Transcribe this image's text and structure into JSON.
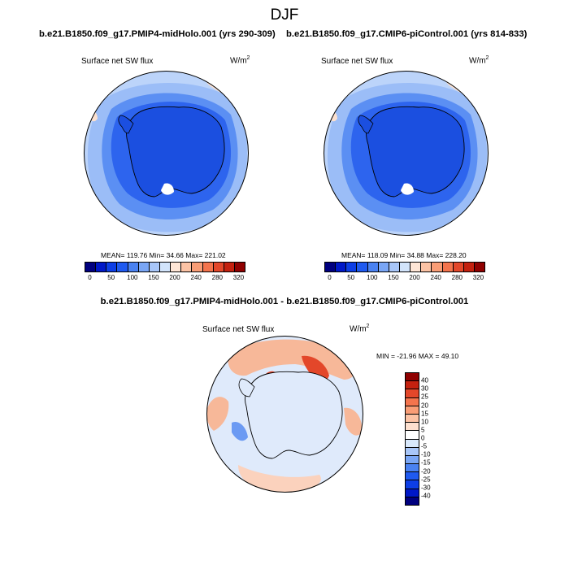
{
  "figure": {
    "title": "DJF",
    "panel_left": {
      "title": "b.e21.B1850.f09_g17.PMIP4-midHolo.001 (yrs 290-309)",
      "variable": "Surface net SW flux",
      "units_base": "W/m",
      "units_exp": "2",
      "stats": "MEAN= 119.76  Min=  34.66  Max= 221.02"
    },
    "panel_right": {
      "title": "b.e21.B1850.f09_g17.CMIP6-piControl.001 (yrs 814-833)",
      "variable": "Surface net SW flux",
      "units_base": "W/m",
      "units_exp": "2",
      "stats": "MEAN= 118.09  Min=  34.88  Max= 228.20"
    },
    "panel_diff": {
      "title": "b.e21.B1850.f09_g17.PMIP4-midHolo.001 - b.e21.B1850.f09_g17.CMIP6-piControl.001",
      "variable": "Surface net SW flux",
      "units_base": "W/m",
      "units_exp": "2",
      "stats": "MIN = -21.96 MAX =  49.10"
    }
  },
  "abs_colorbar": {
    "ticks": [
      "0",
      "50",
      "100",
      "150",
      "200",
      "240",
      "280",
      "320"
    ],
    "colors": [
      "#00007f",
      "#0018c8",
      "#0d3ee6",
      "#1f5af0",
      "#4a82f2",
      "#7aa6f5",
      "#a8c6f8",
      "#d2e4fb",
      "#ffe6d6",
      "#fcc3a5",
      "#f99d76",
      "#f4744d",
      "#e3472a",
      "#c4210f",
      "#8f0000"
    ]
  },
  "diff_colorbar": {
    "ticks": [
      "40",
      "30",
      "25",
      "20",
      "15",
      "10",
      "5",
      "0",
      "-5",
      "-10",
      "-15",
      "-20",
      "-25",
      "-30",
      "-40"
    ],
    "colors": [
      "#8f0000",
      "#c4210f",
      "#e3472a",
      "#f4744d",
      "#f99d76",
      "#fcc3a5",
      "#fde0cf",
      "#ffffff",
      "#d8e8fb",
      "#a8c6f8",
      "#7aa6f5",
      "#4a82f2",
      "#1f5af0",
      "#0d3ee6",
      "#0018c8",
      "#00007f"
    ]
  },
  "map_colors": {
    "land": "#1b4fe0",
    "ocean_inner": "#2d64ee",
    "ocean_mid": "#5b8ff3",
    "ocean_outer": "#9bbdf7",
    "ocean_edge": "#bcd4fa",
    "warm_patch": "#fbe0cf",
    "diff_bg": "#dfeafb",
    "diff_warm": "#f7b899",
    "diff_hot": "#e3472a",
    "diff_extreme": "#b01808",
    "diff_cool": "#6b9af3"
  }
}
